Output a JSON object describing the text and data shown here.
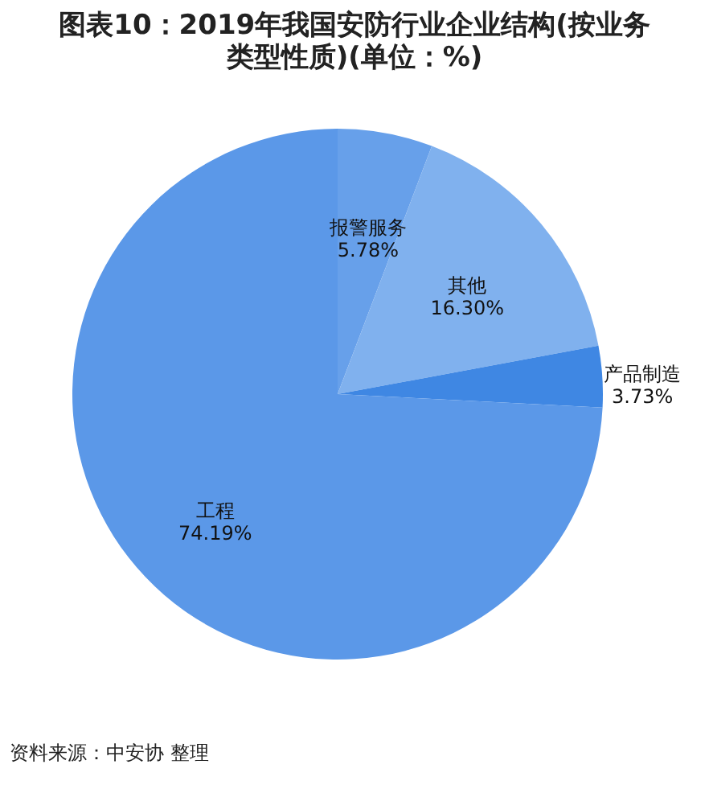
{
  "chart_data": {
    "type": "pie",
    "title": "图表10：2019年我国安防行业企业结构(按业务类型性质)(单位：%)",
    "categories": [
      "报警服务",
      "其他",
      "产品制造",
      "工程"
    ],
    "values": [
      5.78,
      16.3,
      3.73,
      74.19
    ],
    "value_labels": [
      "5.78%",
      "16.30%",
      "3.73%",
      "74.19%"
    ],
    "colors": [
      "#67a0ea",
      "#80b1ee",
      "#3f87e3",
      "#5b98e8"
    ],
    "legend": false,
    "annotations": [
      "资料来源：中安协 整理"
    ]
  }
}
